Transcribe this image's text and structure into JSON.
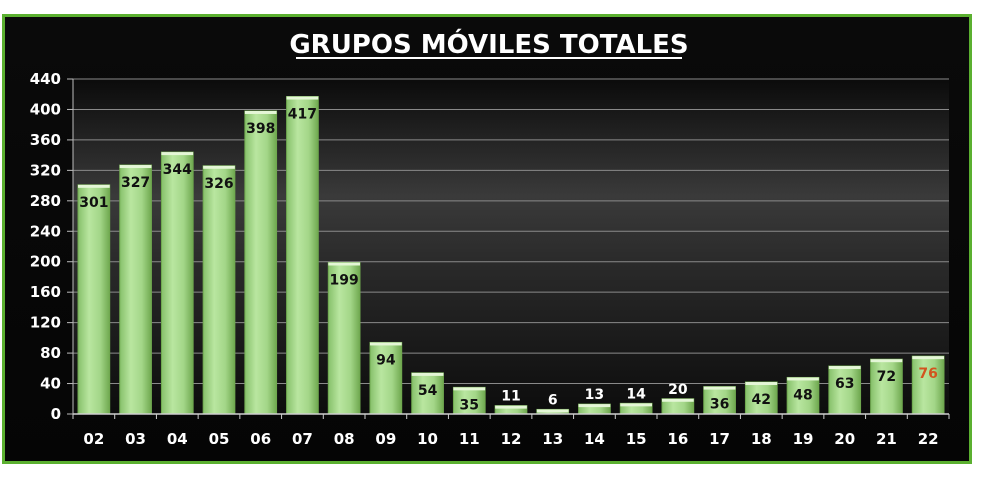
{
  "chart_data": {
    "type": "bar",
    "title": "GRUPOS MÓVILES TOTALES",
    "xlabel": "",
    "ylabel": "",
    "categories": [
      "02",
      "03",
      "04",
      "05",
      "06",
      "07",
      "08",
      "09",
      "10",
      "11",
      "12",
      "13",
      "14",
      "15",
      "16",
      "17",
      "18",
      "19",
      "20",
      "21",
      "22"
    ],
    "values": [
      301,
      327,
      344,
      326,
      398,
      417,
      199,
      94,
      54,
      35,
      11,
      6,
      13,
      14,
      20,
      36,
      42,
      48,
      63,
      72,
      76
    ],
    "ylim": [
      0,
      440
    ],
    "yticks": [
      0,
      40,
      80,
      120,
      160,
      200,
      240,
      280,
      320,
      360,
      400,
      440
    ],
    "grid": true,
    "legend": "none",
    "colors": {
      "bar": "#a6d98a",
      "bar_edge": "#6fa84f",
      "frame_border": "#5bb030",
      "text": "#ffffff",
      "label_inside": "#111111",
      "label_outside": "#ffffff",
      "label_highlight": "#d2541f"
    },
    "highlight_last": true
  }
}
